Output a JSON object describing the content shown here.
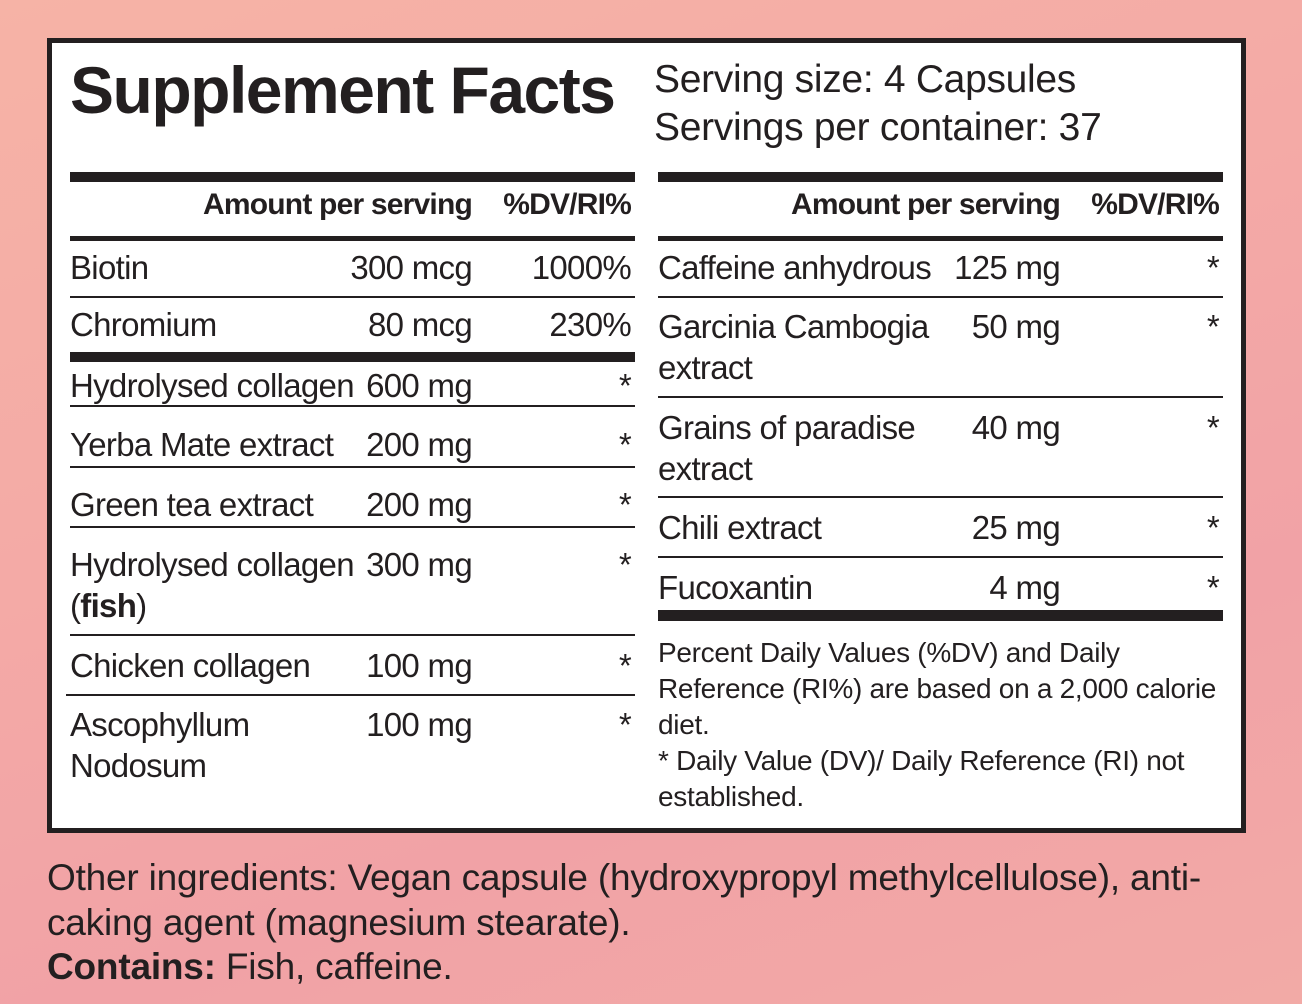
{
  "title": "Supplement Facts",
  "serving_size": "Serving size: 4 Capsules",
  "servings_per_container": "Servings per container: 37",
  "header": {
    "amount": "Amount per serving",
    "dv": "%DV/RI%"
  },
  "left_rows": [
    {
      "name": "Biotin",
      "amount": "300 mcg",
      "dv": "1000%"
    },
    {
      "name": "Chromium",
      "amount": "80 mcg",
      "dv": "230%"
    },
    {
      "name": "Hydrolysed collagen",
      "amount": "600 mg",
      "dv": "*"
    },
    {
      "name": "Yerba Mate extract",
      "amount": "200 mg",
      "dv": "*"
    },
    {
      "name": "Green tea extract",
      "amount": "200 mg",
      "dv": "*"
    },
    {
      "name": "Hydrolysed collagen",
      "name2_pre": "(",
      "name2_bold": "fish",
      "name2_post": ")",
      "amount": "300 mg",
      "dv": "*"
    },
    {
      "name": "Chicken collagen",
      "amount": "100 mg",
      "dv": "*"
    },
    {
      "name": "Ascophyllum",
      "name2": "Nodosum",
      "amount": "100 mg",
      "dv": "*"
    }
  ],
  "right_rows": [
    {
      "name": "Caffeine anhydrous",
      "amount": "125 mg",
      "dv": "*"
    },
    {
      "name": "Garcinia Cambogia",
      "name2": "extract",
      "amount": "50 mg",
      "dv": "*"
    },
    {
      "name": "Grains of paradise",
      "name2": "extract",
      "amount": "40 mg",
      "dv": "*"
    },
    {
      "name": "Chili extract",
      "amount": "25 mg",
      "dv": "*"
    },
    {
      "name": "Fucoxantin",
      "amount": "4 mg",
      "dv": "*"
    }
  ],
  "footnote": {
    "line1": "Percent Daily Values (%DV) and Daily Reference (RI%) are based on a 2,000 calorie diet.",
    "line2": "* Daily Value (DV)/ Daily Reference (RI) not established."
  },
  "other": {
    "text": "Other ingredients: Vegan capsule (hydroxypropyl methylcellulose), anti-caking agent (magnesium stearate).",
    "contains_label": "Contains:",
    "contains_value": " Fish, caffeine."
  }
}
